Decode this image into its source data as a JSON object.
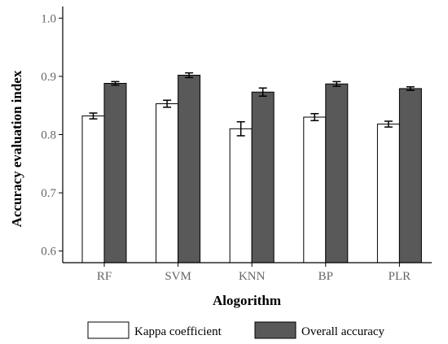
{
  "chart_data": {
    "type": "bar",
    "xlabel": "Alogorithm",
    "ylabel": "Accuracy evaluation index",
    "categories": [
      "RF",
      "SVM",
      "KNN",
      "BP",
      "PLR"
    ],
    "ylim": [
      0.58,
      1.02
    ],
    "yticks": [
      0.6,
      0.7,
      0.8,
      0.9,
      1.0
    ],
    "ytick_labels": [
      "0.6",
      "0.7",
      "0.8",
      "0.9",
      "1.0"
    ],
    "grid": false,
    "legend_position": "bottom",
    "series": [
      {
        "name": "Kappa coefficient",
        "color": "#ffffff",
        "values": [
          0.832,
          0.853,
          0.81,
          0.83,
          0.818
        ],
        "errors": [
          0.005,
          0.006,
          0.012,
          0.006,
          0.005
        ]
      },
      {
        "name": "Overall accuracy",
        "color": "#595959",
        "values": [
          0.888,
          0.902,
          0.873,
          0.887,
          0.879
        ],
        "errors": [
          0.003,
          0.004,
          0.007,
          0.004,
          0.003
        ]
      }
    ]
  }
}
